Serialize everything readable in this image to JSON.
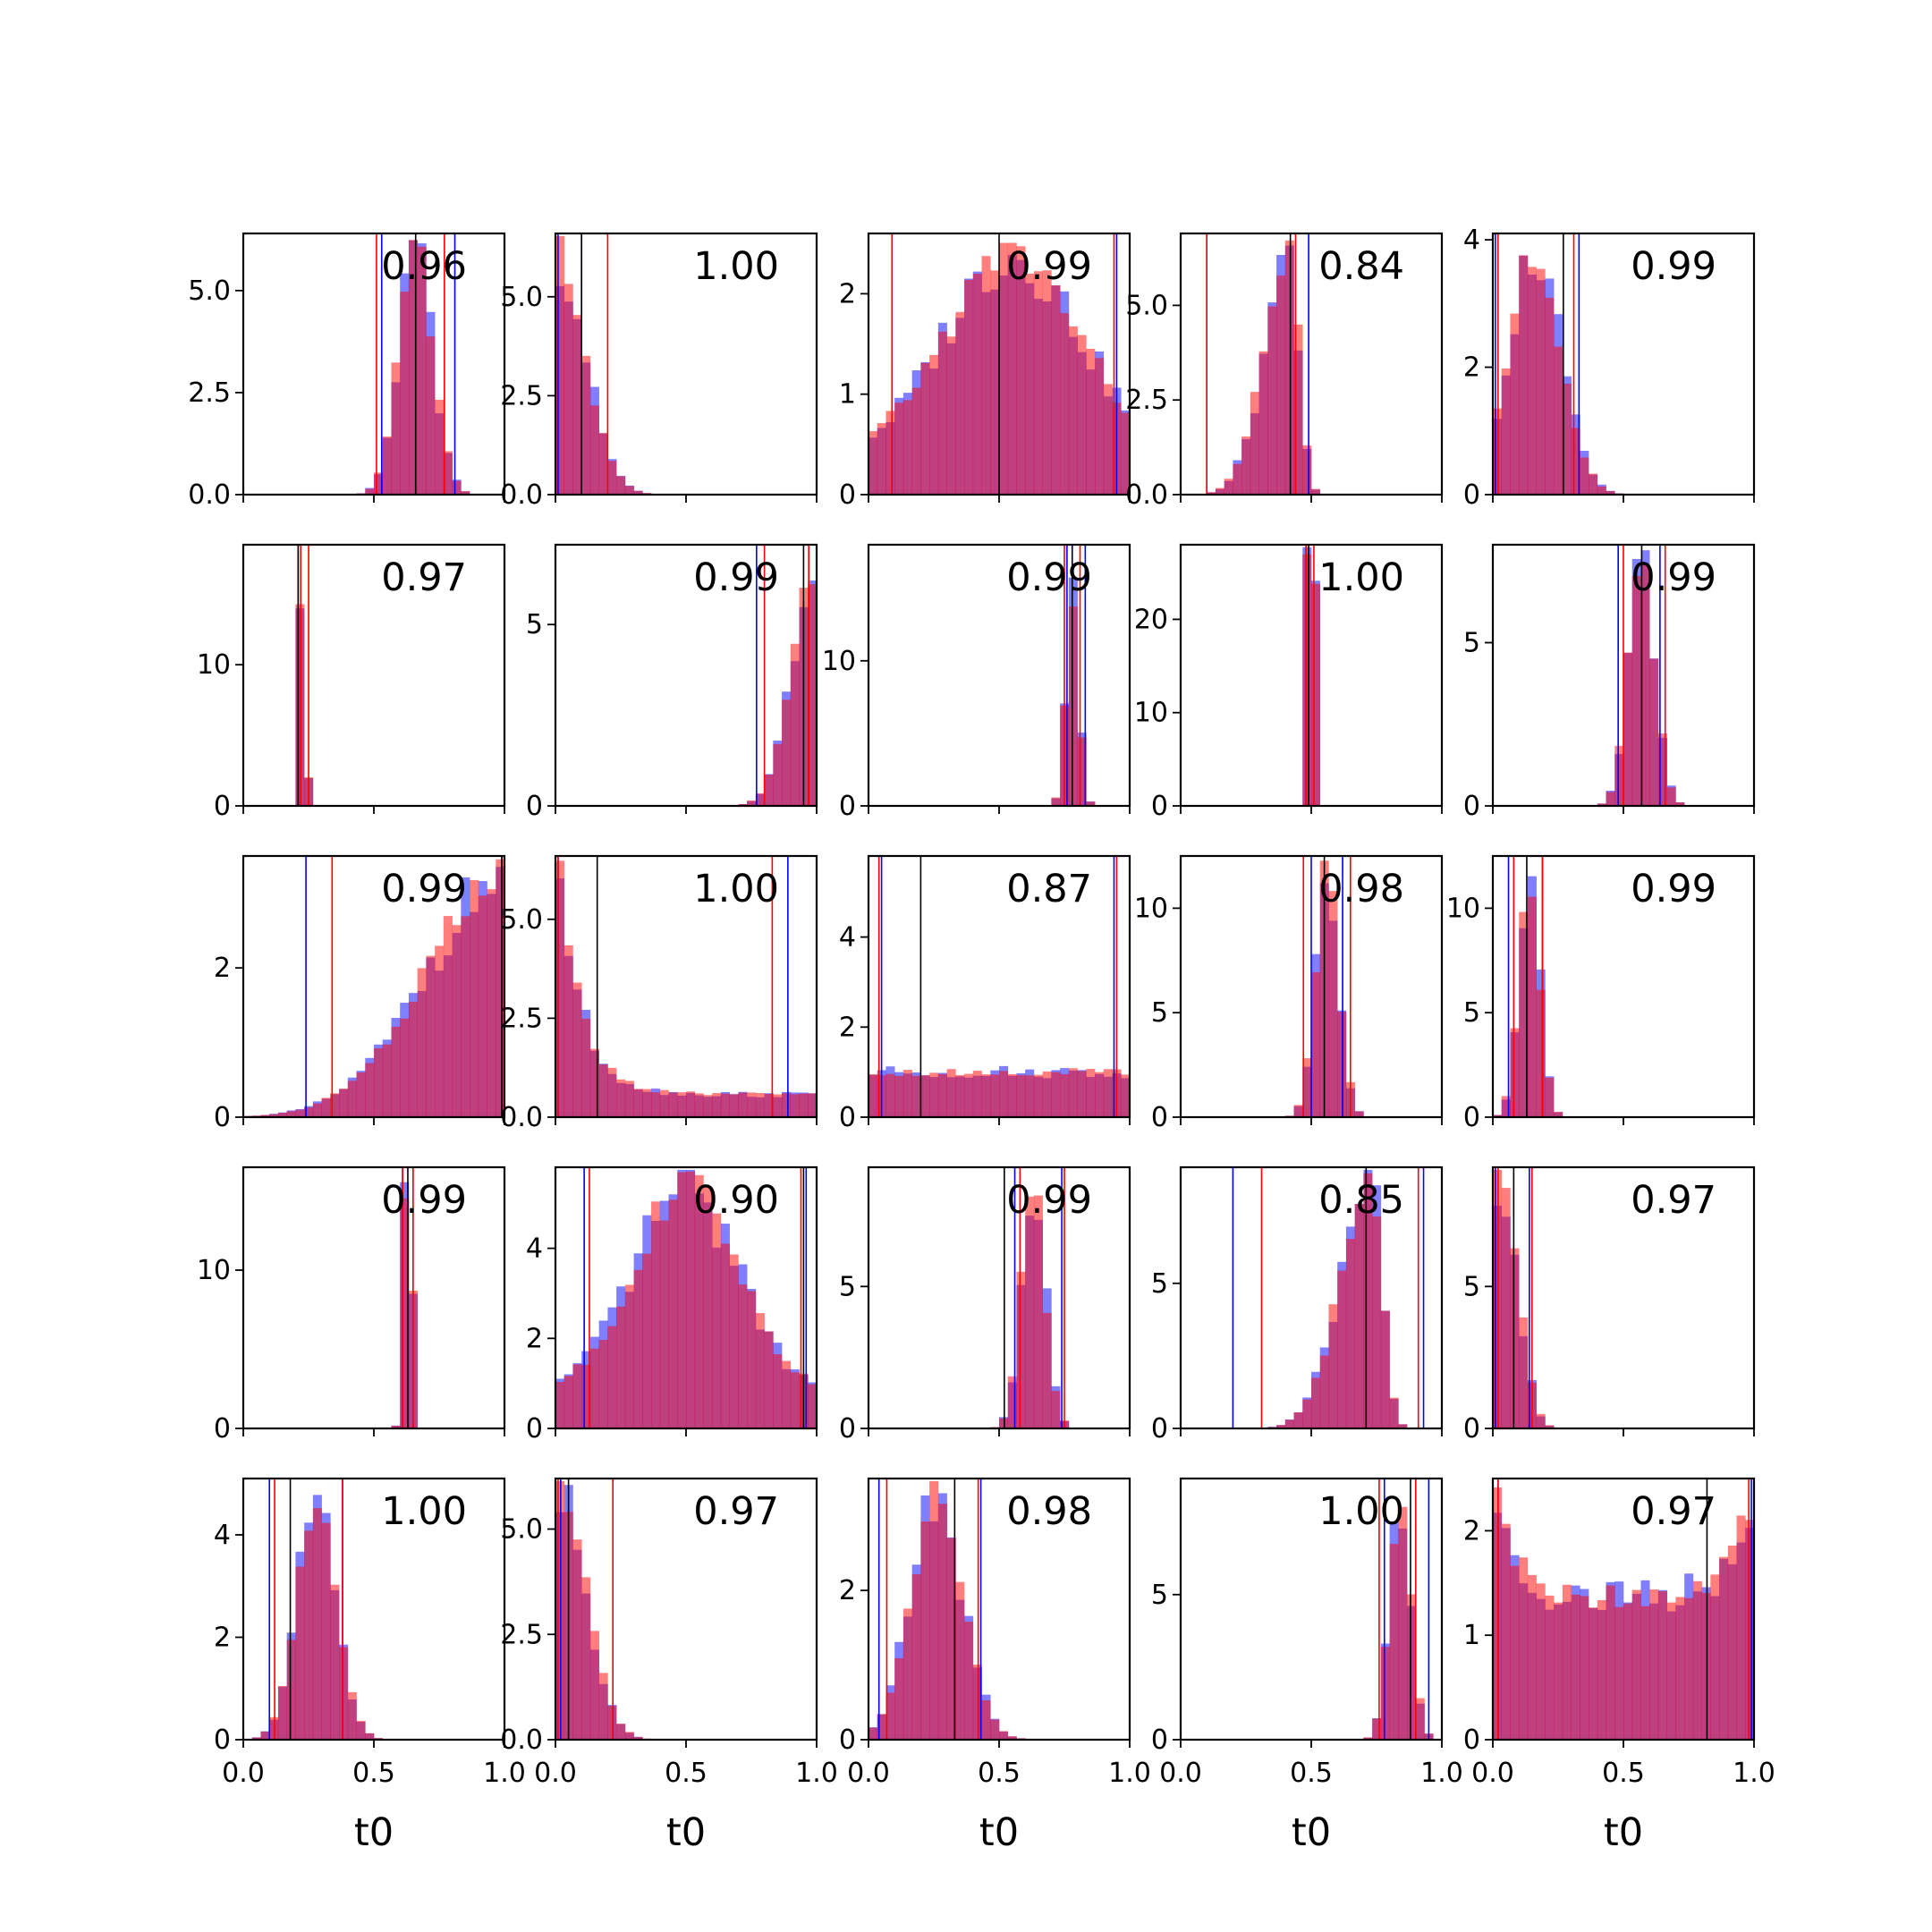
{
  "chart_data": {
    "type": "histogram-grid",
    "rows": 5,
    "cols": 5,
    "xlabel": "t0",
    "xlim": [
      0,
      1
    ],
    "xticks": [
      "0.0",
      "0.5",
      "1.0"
    ],
    "colors": {
      "blue_hist": "#0000ff",
      "red_hist": "#ff0000",
      "blue_line": "#0000ff",
      "red_line": "#ff0000",
      "black_line": "#000000",
      "hist_alpha": 0.5
    },
    "panels": [
      {
        "label": "0.96",
        "ylim": [
          0,
          6.4
        ],
        "yticks": [
          "0.0",
          "2.5",
          "5.0"
        ],
        "ytick_values": [
          0,
          2.5,
          5.0
        ],
        "dist": {
          "type": "gauss",
          "mu": 0.66,
          "sigma": 0.065
        },
        "blue_lines": [
          0.53,
          0.81
        ],
        "red_lines": [
          0.51,
          0.77
        ],
        "black_lines": [
          0.66
        ]
      },
      {
        "label": "1.00",
        "ylim": [
          0,
          6.6
        ],
        "yticks": [
          "0.0",
          "2.5",
          "5.0"
        ],
        "ytick_values": [
          0,
          2.5,
          5.0
        ],
        "dist": {
          "type": "halfgauss",
          "mu": 0.0,
          "sigma": 0.11
        },
        "blue_lines": [
          0.01,
          0.1
        ],
        "red_lines": [
          0.2
        ],
        "black_lines": [
          0.1
        ]
      },
      {
        "label": "0.99",
        "ylim": [
          0,
          2.6
        ],
        "yticks": [
          "0",
          "1",
          "2"
        ],
        "ytick_values": [
          0,
          1,
          2
        ],
        "dist": {
          "type": "broad",
          "mu": 0.55,
          "sigma": 0.26
        },
        "blue_lines": [
          0.09,
          0.95
        ],
        "red_lines": [
          0.09,
          0.94
        ],
        "black_lines": [
          0.5
        ]
      },
      {
        "label": "0.84",
        "ylim": [
          0,
          6.9
        ],
        "yticks": [
          "0.0",
          "2.5",
          "5.0"
        ],
        "ytick_values": [
          0,
          2.5,
          5.0
        ],
        "dist": {
          "type": "skewleft",
          "mu": 0.42,
          "sigma": 0.1
        },
        "blue_lines": [
          0.1,
          0.49
        ],
        "red_lines": [
          0.1,
          0.44
        ],
        "black_lines": [
          0.42
        ]
      },
      {
        "label": "0.99",
        "ylim": [
          0,
          4.1
        ],
        "yticks": [
          "0",
          "2",
          "4"
        ],
        "ytick_values": [
          0,
          2,
          4
        ],
        "dist": {
          "type": "gauss",
          "mu": 0.16,
          "sigma": 0.1
        },
        "blue_lines": [
          0.01,
          0.33
        ],
        "red_lines": [
          0.02,
          0.31
        ],
        "black_lines": [
          0.27
        ]
      },
      {
        "label": "0.97",
        "ylim": [
          0,
          18.5
        ],
        "yticks": [
          "0",
          "10"
        ],
        "ytick_values": [
          0,
          10
        ],
        "dist": {
          "type": "spike",
          "mu": 0.225,
          "sigma": 0.012,
          "peak": 15
        },
        "blue_lines": [
          0.21
        ],
        "red_lines": [
          0.22,
          0.25
        ],
        "black_lines": [
          0.21
        ]
      },
      {
        "label": "0.99",
        "ylim": [
          0,
          7.2
        ],
        "yticks": [
          "0",
          "5"
        ],
        "ytick_values": [
          0,
          5
        ],
        "dist": {
          "type": "rampright",
          "mu": 1.0,
          "sigma": 0.09
        },
        "blue_lines": [
          0.77,
          0.97
        ],
        "red_lines": [
          0.8,
          0.97
        ],
        "black_lines": [
          0.95
        ]
      },
      {
        "label": "0.99",
        "ylim": [
          0,
          18
        ],
        "yticks": [
          "0",
          "10"
        ],
        "ytick_values": [
          0,
          10
        ],
        "dist": {
          "type": "spike",
          "mu": 0.78,
          "sigma": 0.025,
          "peak": 14
        },
        "blue_lines": [
          0.76,
          0.83
        ],
        "red_lines": [
          0.75,
          0.81
        ],
        "black_lines": [
          0.78
        ]
      },
      {
        "label": "1.00",
        "ylim": [
          0,
          28
        ],
        "yticks": [
          "0",
          "10",
          "20"
        ],
        "ytick_values": [
          0,
          10,
          20
        ],
        "dist": {
          "type": "spike",
          "mu": 0.5,
          "sigma": 0.012,
          "peak": 25
        },
        "blue_lines": [
          0.48
        ],
        "red_lines": [
          0.48,
          0.51
        ],
        "black_lines": [
          0.49
        ]
      },
      {
        "label": "0.99",
        "ylim": [
          0,
          8.0
        ],
        "yticks": [
          "0",
          "5"
        ],
        "ytick_values": [
          0,
          5
        ],
        "dist": {
          "type": "gauss",
          "mu": 0.57,
          "sigma": 0.05
        },
        "blue_lines": [
          0.48,
          0.64
        ],
        "red_lines": [
          0.5,
          0.66
        ],
        "black_lines": [
          0.57
        ]
      },
      {
        "label": "0.99",
        "ylim": [
          0,
          3.5
        ],
        "yticks": [
          "0",
          "2"
        ],
        "ytick_values": [
          0,
          2
        ],
        "dist": {
          "type": "rampright",
          "mu": 1.0,
          "sigma": 0.3
        },
        "blue_lines": [
          0.24,
          0.99
        ],
        "red_lines": [
          0.34,
          0.99
        ],
        "black_lines": [
          0.99
        ]
      },
      {
        "label": "1.00",
        "ylim": [
          0,
          6.6
        ],
        "yticks": [
          "0.0",
          "2.5",
          "5.0"
        ],
        "ytick_values": [
          0,
          2.5,
          5.0
        ],
        "dist": {
          "type": "decay",
          "mu": 0.0,
          "sigma": 0.09
        },
        "blue_lines": [
          0.01,
          0.89
        ],
        "red_lines": [
          0.01,
          0.83
        ],
        "black_lines": [
          0.16
        ]
      },
      {
        "label": "0.87",
        "ylim": [
          0,
          5.8
        ],
        "yticks": [
          "0",
          "2",
          "4"
        ],
        "ytick_values": [
          0,
          2,
          4
        ],
        "dist": {
          "type": "uniform",
          "level": 1.0
        },
        "blue_lines": [
          0.05,
          0.94
        ],
        "red_lines": [
          0.04,
          0.95
        ],
        "black_lines": [
          0.2
        ]
      },
      {
        "label": "0.98",
        "ylim": [
          0,
          12.5
        ],
        "yticks": [
          "0",
          "5",
          "10"
        ],
        "ytick_values": [
          0,
          5,
          10
        ],
        "dist": {
          "type": "gauss",
          "mu": 0.56,
          "sigma": 0.045
        },
        "blue_lines": [
          0.5,
          0.62
        ],
        "red_lines": [
          0.47,
          0.65
        ],
        "black_lines": [
          0.55
        ]
      },
      {
        "label": "0.99",
        "ylim": [
          0,
          12.5
        ],
        "yticks": [
          "0",
          "5",
          "10"
        ],
        "ytick_values": [
          0,
          5,
          10
        ],
        "dist": {
          "type": "gauss",
          "mu": 0.14,
          "sigma": 0.04
        },
        "blue_lines": [
          0.06,
          0.19
        ],
        "red_lines": [
          0.08,
          0.19
        ],
        "black_lines": [
          0.13
        ]
      },
      {
        "label": "0.99",
        "ylim": [
          0,
          16.5
        ],
        "yticks": [
          "0",
          "10"
        ],
        "ytick_values": [
          0,
          10
        ],
        "dist": {
          "type": "spike",
          "mu": 0.63,
          "sigma": 0.015,
          "peak": 14
        },
        "blue_lines": [
          0.61,
          0.65
        ],
        "red_lines": [
          0.61,
          0.65
        ],
        "black_lines": [
          0.63
        ]
      },
      {
        "label": "0.90",
        "ylim": [
          0,
          5.8
        ],
        "yticks": [
          "0",
          "2",
          "4"
        ],
        "ytick_values": [
          0,
          2,
          4
        ],
        "dist": {
          "type": "broad",
          "mu": 0.5,
          "sigma": 0.2
        },
        "blue_lines": [
          0.11,
          0.96
        ],
        "red_lines": [
          0.13,
          0.94
        ],
        "black_lines": [
          0.95
        ]
      },
      {
        "label": "0.99",
        "ylim": [
          0,
          9.2
        ],
        "yticks": [
          "0",
          "5"
        ],
        "ytick_values": [
          0,
          5
        ],
        "dist": {
          "type": "gauss",
          "mu": 0.63,
          "sigma": 0.045
        },
        "blue_lines": [
          0.56,
          0.74
        ],
        "red_lines": [
          0.58,
          0.75
        ],
        "black_lines": [
          0.52
        ]
      },
      {
        "label": "0.85",
        "ylim": [
          0,
          9.0
        ],
        "yticks": [
          "0",
          "5"
        ],
        "ytick_values": [
          0,
          5
        ],
        "dist": {
          "type": "skewleft",
          "mu": 0.73,
          "sigma": 0.12
        },
        "blue_lines": [
          0.2,
          0.93
        ],
        "red_lines": [
          0.31,
          0.91
        ],
        "black_lines": [
          0.71
        ]
      },
      {
        "label": "0.97",
        "ylim": [
          0,
          9.2
        ],
        "yticks": [
          "0",
          "5"
        ],
        "ytick_values": [
          0,
          5
        ],
        "dist": {
          "type": "halfgauss",
          "mu": 0.04,
          "sigma": 0.06
        },
        "blue_lines": [
          0.01,
          0.14
        ],
        "red_lines": [
          0.02,
          0.15
        ],
        "black_lines": [
          0.08
        ]
      },
      {
        "label": "1.00",
        "ylim": [
          0,
          5.1
        ],
        "yticks": [
          "0",
          "2",
          "4"
        ],
        "ytick_values": [
          0,
          2,
          4
        ],
        "dist": {
          "type": "gauss",
          "mu": 0.28,
          "sigma": 0.075
        },
        "blue_lines": [
          0.1,
          0.38
        ],
        "red_lines": [
          0.12,
          0.38
        ],
        "black_lines": [
          0.18
        ]
      },
      {
        "label": "0.97",
        "ylim": [
          0,
          6.2
        ],
        "yticks": [
          "0.0",
          "2.5",
          "5.0"
        ],
        "ytick_values": [
          0,
          2.5,
          5.0
        ],
        "dist": {
          "type": "halfgauss",
          "mu": 0.02,
          "sigma": 0.1
        },
        "blue_lines": [
          0.02,
          0.22
        ],
        "red_lines": [
          0.01,
          0.22
        ],
        "black_lines": [
          0.05
        ]
      },
      {
        "label": "0.98",
        "ylim": [
          0,
          3.5
        ],
        "yticks": [
          "0",
          "2"
        ],
        "ytick_values": [
          0,
          2
        ],
        "dist": {
          "type": "gauss",
          "mu": 0.26,
          "sigma": 0.1
        },
        "blue_lines": [
          0.04,
          0.43
        ],
        "red_lines": [
          0.07,
          0.42
        ],
        "black_lines": [
          0.33
        ]
      },
      {
        "label": "1.00",
        "ylim": [
          0,
          9.0
        ],
        "yticks": [
          "0",
          "5"
        ],
        "ytick_values": [
          0,
          5
        ],
        "dist": {
          "type": "gauss",
          "mu": 0.84,
          "sigma": 0.04
        },
        "blue_lines": [
          0.78,
          0.95
        ],
        "red_lines": [
          0.76,
          0.9
        ],
        "black_lines": [
          0.88
        ]
      },
      {
        "label": "0.97",
        "ylim": [
          0,
          2.5
        ],
        "yticks": [
          "0",
          "1",
          "2"
        ],
        "ytick_values": [
          0,
          1,
          2
        ],
        "dist": {
          "type": "ushape",
          "level": 1.0
        },
        "blue_lines": [
          0.02,
          0.99
        ],
        "red_lines": [
          0.02,
          0.98
        ],
        "black_lines": [
          0.82
        ]
      }
    ]
  }
}
